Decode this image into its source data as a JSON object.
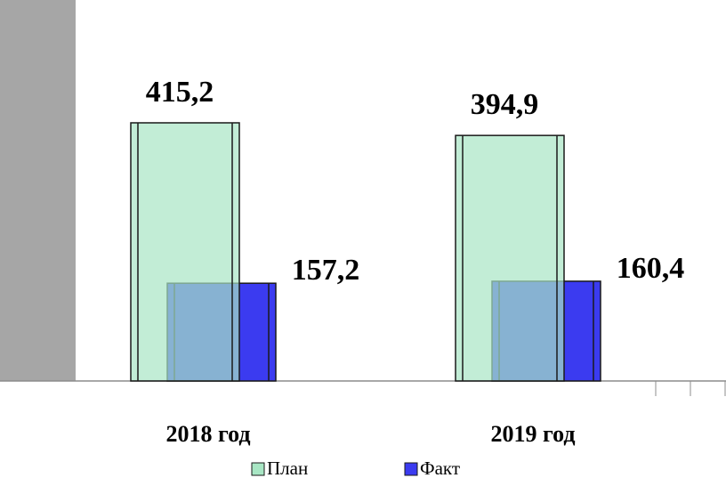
{
  "chart_data": {
    "type": "bar",
    "categories": [
      "2018 год",
      "2019 год"
    ],
    "series": [
      {
        "name": "План",
        "color": "#a8e6c4",
        "values": [
          415.2,
          394.9
        ],
        "value_labels": [
          "415,2",
          "394,9"
        ]
      },
      {
        "name": "Факт",
        "color": "#3b3bf0",
        "values": [
          157.2,
          160.4
        ],
        "value_labels": [
          "157,2",
          "160,4"
        ]
      }
    ]
  }
}
